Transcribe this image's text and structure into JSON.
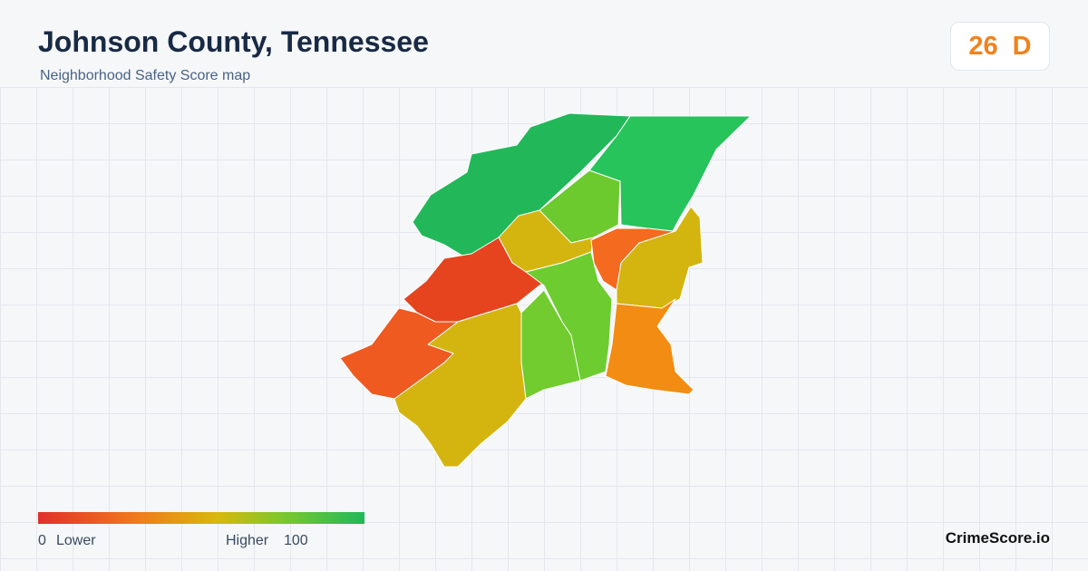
{
  "header": {
    "title": "Johnson County, Tennessee",
    "subtitle": "Neighborhood Safety Score map"
  },
  "score": {
    "value": "26",
    "grade": "D"
  },
  "legend": {
    "min": "0",
    "min_label": "Lower",
    "max_label": "Higher",
    "max": "100"
  },
  "brand": "CrimeScore.io"
}
